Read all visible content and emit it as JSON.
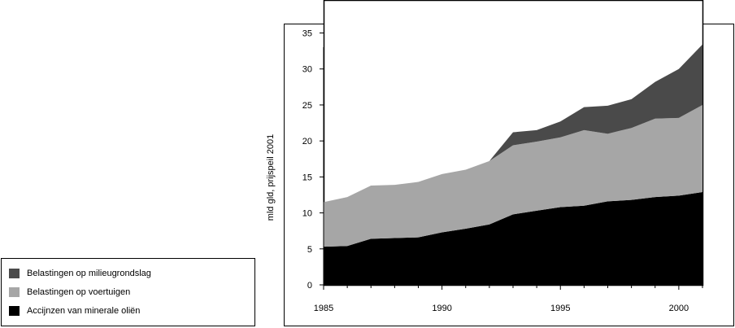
{
  "chart_data": {
    "type": "area",
    "stacked": true,
    "title": "",
    "xlabel": "",
    "ylabel": "mld gld, prijspeil 2001",
    "xlim": [
      1985,
      2001
    ],
    "ylim": [
      0,
      38
    ],
    "yticks": [
      0,
      5,
      10,
      15,
      20,
      25,
      30,
      35
    ],
    "xticks": [
      1985,
      1990,
      1995,
      2000
    ],
    "x": [
      1985,
      1986,
      1987,
      1988,
      1989,
      1990,
      1991,
      1992,
      1993,
      1994,
      1995,
      1996,
      1997,
      1998,
      1999,
      2000,
      2001
    ],
    "series": [
      {
        "name": "Accijnzen van minerale oliën",
        "color": "#000000",
        "values": [
          5.3,
          5.4,
          6.4,
          6.5,
          6.6,
          7.3,
          7.8,
          8.4,
          9.8,
          10.3,
          10.8,
          11.0,
          11.6,
          11.8,
          12.2,
          12.4,
          12.9
        ]
      },
      {
        "name": "Belastingen op voertuigen",
        "color": "#a6a6a6",
        "values": [
          6.2,
          6.8,
          7.4,
          7.4,
          7.7,
          8.1,
          8.2,
          8.8,
          9.6,
          9.6,
          9.7,
          10.5,
          9.4,
          10.0,
          10.9,
          10.8,
          12.1
        ]
      },
      {
        "name": "Belastingen op milieugrondslag",
        "color": "#4a4a4a",
        "values": [
          0,
          0,
          0,
          0,
          0,
          0,
          0,
          0,
          1.8,
          1.6,
          2.2,
          3.2,
          3.9,
          4.0,
          5.1,
          6.8,
          8.4
        ]
      }
    ],
    "legend": {
      "position": "bottom-left",
      "order": [
        "Belastingen op milieugrondslag",
        "Belastingen op voertuigen",
        "Accijnzen van minerale oliën"
      ]
    },
    "grid": false
  }
}
